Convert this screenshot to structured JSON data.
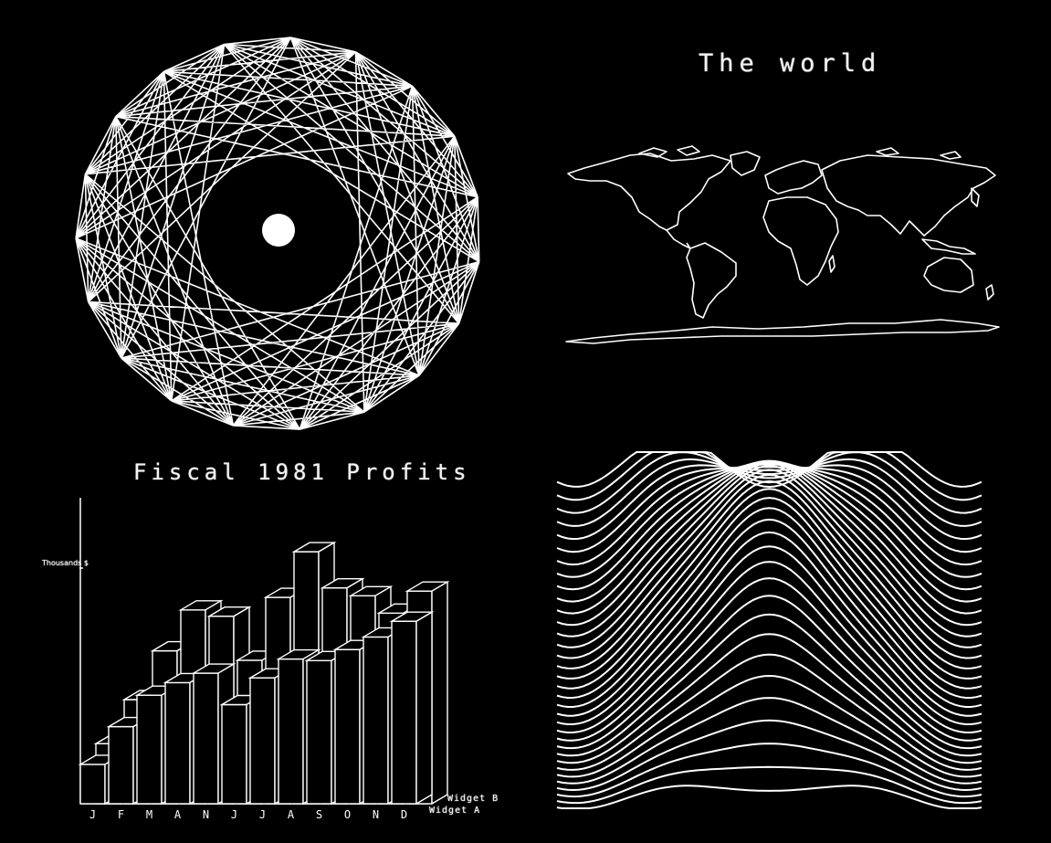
{
  "panels": {
    "world_map": {
      "title": "The world"
    },
    "profits_chart": {
      "title": "Fiscal 1981 Profits",
      "ylabel": "Thousands $"
    }
  },
  "colors": {
    "background": "#000000",
    "foreground": "#ffffff"
  },
  "chart_data": {
    "type": "bar",
    "title": "Fiscal 1981 Profits",
    "xlabel": "",
    "ylabel": "Thousands $",
    "categories": [
      "J",
      "F",
      "M",
      "A",
      "N",
      "J",
      "J",
      "A",
      "S",
      "O",
      "N",
      "D"
    ],
    "series": [
      {
        "name": "Widget A",
        "values": [
          2.5,
          4.9,
          6.9,
          7.7,
          8.3,
          6.3,
          8.0,
          9.2,
          9.1,
          9.8,
          10.6,
          11.6
        ]
      },
      {
        "name": "Widget B",
        "values": [
          4.4,
          7.2,
          10.3,
          12.9,
          12.5,
          9.7,
          13.7,
          16.6,
          14.3,
          13.8,
          12.7,
          14.1
        ]
      }
    ],
    "ylim": [
      0,
      18
    ],
    "legend": "right, along depth axis"
  }
}
